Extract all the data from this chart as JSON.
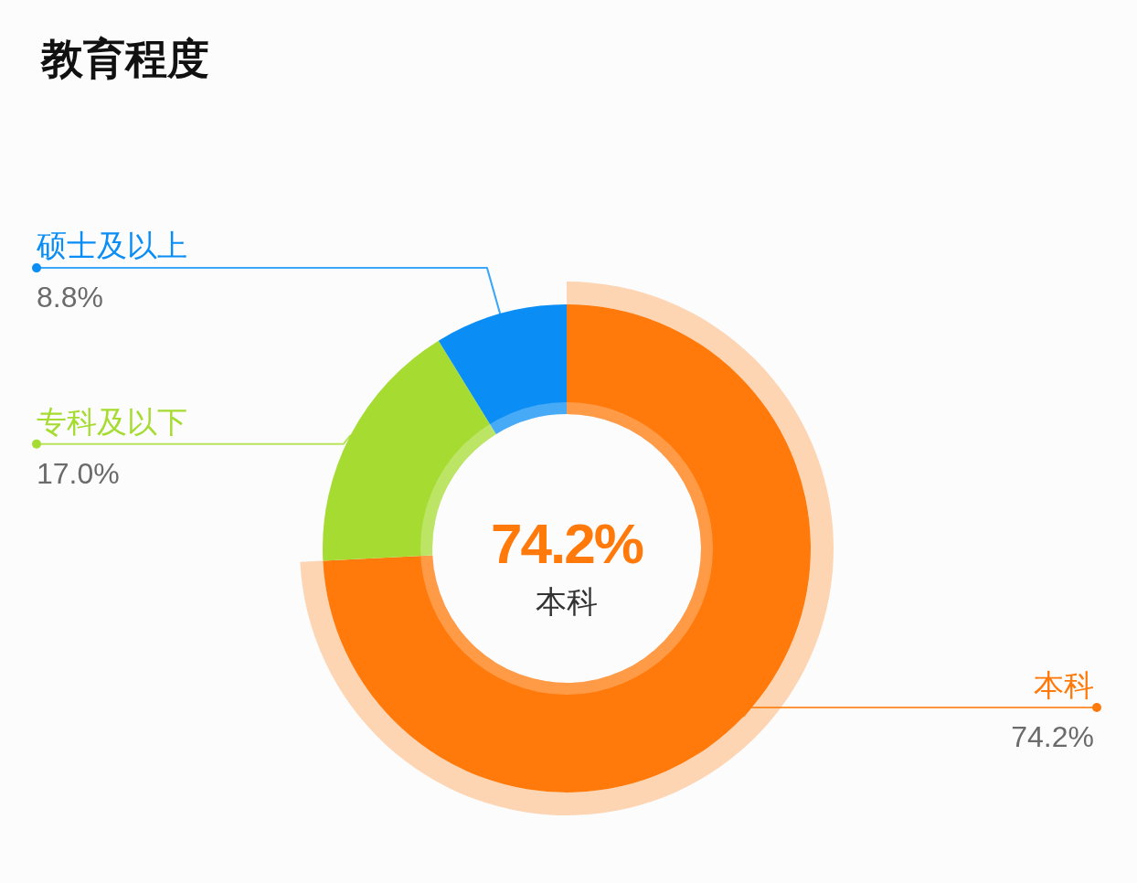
{
  "chart_data": {
    "type": "donut",
    "title": "教育程度",
    "categories": [
      "本科",
      "专科及以下",
      "硕士及以上"
    ],
    "values": [
      74.2,
      17.0,
      8.8
    ],
    "colors": [
      "#ff7a0a",
      "#a6dc32",
      "#0a8ef5"
    ],
    "value_labels": [
      "74.2%",
      "17.0%",
      "8.8%"
    ],
    "annotations": [
      "74.2%",
      "本科"
    ]
  }
}
